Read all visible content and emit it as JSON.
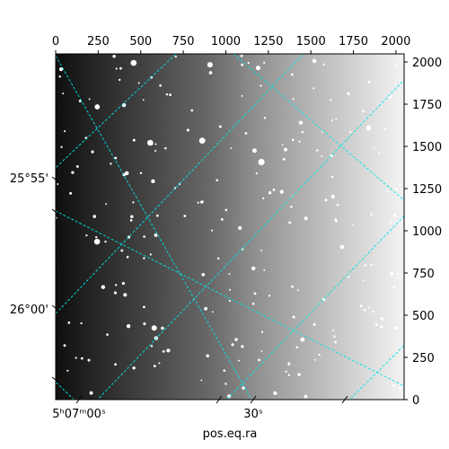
{
  "chart_data": {
    "type": "image",
    "image_kind": "astronomical-sky-image-with-wcs-grid",
    "colormap": "grayscale",
    "brightness_gradient": "dark-left-to-bright-right",
    "xlabel": "pos.eq.ra",
    "ylabel": "",
    "pixel_x_axis": {
      "position": "top",
      "ticks": [
        "0",
        "250",
        "500",
        "750",
        "1000",
        "1250",
        "1500",
        "1750",
        "2000"
      ],
      "range": [
        0,
        2048
      ]
    },
    "pixel_y_axis": {
      "position": "right",
      "ticks": [
        "0",
        "250",
        "500",
        "750",
        "1000",
        "1250",
        "1500",
        "1750",
        "2000"
      ],
      "range": [
        0,
        2048
      ]
    },
    "ra_axis": {
      "position": "bottom",
      "ticks": [
        "5ʰ07ᵐ00ˢ",
        "30ˢ"
      ]
    },
    "dec_axis": {
      "position": "left",
      "ticks": [
        "25°55'",
        "26°00'"
      ]
    },
    "grid": true,
    "grid_color": "#00e5e5"
  }
}
